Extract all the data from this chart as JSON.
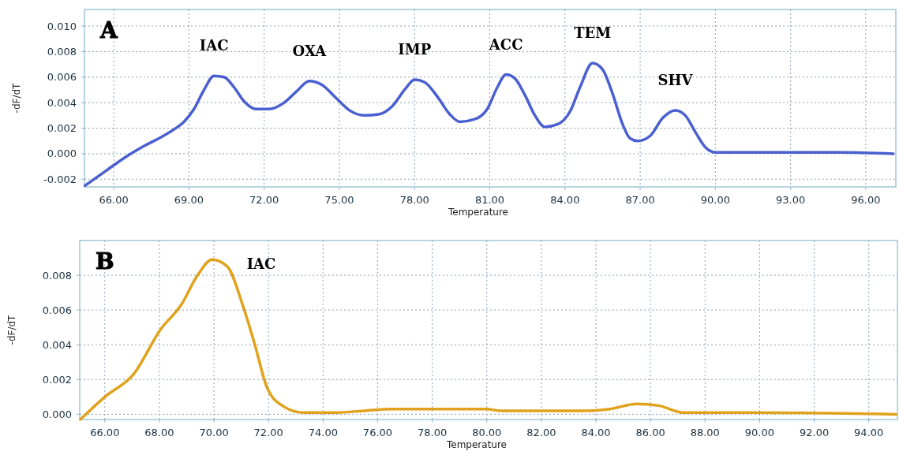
{
  "chart_data": [
    {
      "type": "line",
      "xlabel": "Temperature",
      "ylabel": "-dF/dT",
      "grid": true,
      "xlim": [
        64.83,
        97.2
      ],
      "ylim": [
        -0.0026,
        0.0113
      ],
      "xticks": [
        {
          "value": 66,
          "label": "66.00"
        },
        {
          "value": 69,
          "label": "69.00"
        },
        {
          "value": 72,
          "label": "72.00"
        },
        {
          "value": 75,
          "label": "75.00"
        },
        {
          "value": 78,
          "label": "78.00"
        },
        {
          "value": 81,
          "label": "81.00"
        },
        {
          "value": 84,
          "label": "84.00"
        },
        {
          "value": 87,
          "label": "87.00"
        },
        {
          "value": 90,
          "label": "90.00"
        },
        {
          "value": 93,
          "label": "93.00"
        },
        {
          "value": 96,
          "label": "96.00"
        }
      ],
      "yticks": [
        {
          "value": -0.002,
          "label": "-0.002"
        },
        {
          "value": 0,
          "label": "0.000"
        },
        {
          "value": 0.002,
          "label": "0.002"
        },
        {
          "value": 0.004,
          "label": "0.004"
        },
        {
          "value": 0.006,
          "label": "0.006"
        },
        {
          "value": 0.008,
          "label": "0.008"
        },
        {
          "value": 0.01,
          "label": "0.010"
        }
      ],
      "annotations": [
        "A",
        {
          "text": "IAC",
          "x": 70.0,
          "y": 0.0061
        },
        {
          "text": "OXA",
          "x": 73.8,
          "y": 0.0057
        },
        {
          "text": "IMP",
          "x": 78.0,
          "y": 0.0058
        },
        {
          "text": "ACC",
          "x": 81.65,
          "y": 0.0062
        },
        {
          "text": "TEM",
          "x": 85.1,
          "y": 0.0071
        },
        {
          "text": "SHV",
          "x": 88.4,
          "y": 0.0034
        }
      ],
      "x": [
        64.85,
        65.5,
        66.0,
        66.6,
        67.2,
        67.8,
        68.4,
        68.8,
        69.2,
        69.6,
        70.0,
        70.4,
        70.8,
        71.2,
        71.65,
        72.2,
        72.8,
        73.3,
        73.8,
        74.3,
        74.9,
        75.4,
        76.0,
        76.6,
        77.1,
        77.6,
        78.0,
        78.4,
        78.9,
        79.4,
        79.8,
        80.4,
        80.9,
        81.3,
        81.65,
        82.0,
        82.4,
        82.8,
        83.2,
        83.7,
        84.2,
        84.6,
        85.1,
        85.5,
        85.9,
        86.3,
        86.6,
        86.9,
        87.4,
        87.9,
        88.4,
        88.8,
        89.2,
        89.6,
        90.0,
        93.0,
        95.0,
        97.1
      ],
      "series": [
        {
          "color": "#4a5fd0",
          "values": [
            -0.0025,
            -0.0016,
            -0.0009,
            -0.0001,
            0.0006,
            0.0012,
            0.0019,
            0.0025,
            0.0035,
            0.005,
            0.0061,
            0.006,
            0.0052,
            0.0041,
            0.0035,
            0.0035,
            0.004,
            0.0049,
            0.0057,
            0.0054,
            0.0043,
            0.0034,
            0.003,
            0.0031,
            0.0037,
            0.005,
            0.0058,
            0.0056,
            0.0045,
            0.0031,
            0.0025,
            0.0027,
            0.0035,
            0.0052,
            0.0062,
            0.0059,
            0.0046,
            0.003,
            0.0021,
            0.0023,
            0.0033,
            0.0052,
            0.0071,
            0.0066,
            0.0047,
            0.0023,
            0.0012,
            0.001,
            0.0014,
            0.0028,
            0.0034,
            0.003,
            0.0017,
            0.0005,
            0.0001,
            0.0001,
            0.0001,
            0.0
          ]
        }
      ]
    },
    {
      "type": "line",
      "xlabel": "Temperature",
      "ylabel": "-dF/dT",
      "grid": true,
      "xlim": [
        65.08,
        95.05
      ],
      "ylim": [
        -0.0003,
        0.01
      ],
      "xticks": [
        {
          "value": 66,
          "label": "66.00"
        },
        {
          "value": 68,
          "label": "68.00"
        },
        {
          "value": 70,
          "label": "70.00"
        },
        {
          "value": 72,
          "label": "72.00"
        },
        {
          "value": 74,
          "label": "74.00"
        },
        {
          "value": 76,
          "label": "76.00"
        },
        {
          "value": 78,
          "label": "78.00"
        },
        {
          "value": 80,
          "label": "80.00"
        },
        {
          "value": 82,
          "label": "82.00"
        },
        {
          "value": 84,
          "label": "84.00"
        },
        {
          "value": 86,
          "label": "86.00"
        },
        {
          "value": 88,
          "label": "88.00"
        },
        {
          "value": 90,
          "label": "90.00"
        },
        {
          "value": 92,
          "label": "92.00"
        },
        {
          "value": 94,
          "label": "94.00"
        }
      ],
      "yticks": [
        {
          "value": 0,
          "label": "0.000"
        },
        {
          "value": 0.002,
          "label": "0.002"
        },
        {
          "value": 0.004,
          "label": "0.004"
        },
        {
          "value": 0.006,
          "label": "0.006"
        },
        {
          "value": 0.008,
          "label": "0.008"
        }
      ],
      "annotations": [
        "B",
        {
          "text": "IAC",
          "x": 69.93,
          "y": 0.0089
        }
      ],
      "x": [
        65.1,
        66.0,
        67.05,
        68.05,
        68.8,
        69.4,
        69.93,
        70.49,
        71.05,
        71.5,
        71.93,
        72.5,
        73.27,
        74.5,
        75.5,
        76.5,
        80.0,
        80.5,
        83.5,
        84.5,
        85.5,
        86.3,
        87.2,
        90.0,
        95.0
      ],
      "series": [
        {
          "color": "#e0a21c",
          "values": [
            -0.0003,
            0.001,
            0.0023,
            0.0049,
            0.0063,
            0.008,
            0.0089,
            0.0085,
            0.0063,
            0.004,
            0.0016,
            0.0005,
            0.0001,
            0.0001,
            0.0002,
            0.0003,
            0.0003,
            0.0002,
            0.0002,
            0.0003,
            0.0006,
            0.0005,
            0.0001,
            0.0001,
            0.0
          ]
        }
      ]
    }
  ]
}
